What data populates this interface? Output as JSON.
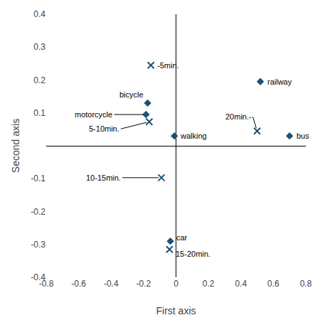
{
  "chart_data": {
    "type": "scatter",
    "xlabel": "First axis",
    "ylabel": "Second axis",
    "xlim": [
      -0.8,
      0.8
    ],
    "ylim": [
      -0.4,
      0.4
    ],
    "xticks": [
      -0.8,
      -0.6,
      -0.4,
      -0.2,
      0,
      0.2,
      0.4,
      0.6,
      0.8
    ],
    "yticks": [
      -0.4,
      -0.3,
      -0.2,
      -0.1,
      0.1,
      0.2,
      0.3,
      0.4
    ],
    "grid": false,
    "series": [
      {
        "marker": "diamond",
        "color": "#1a5276",
        "x": [
          0.52,
          0.7,
          -0.175,
          -0.185,
          -0.01,
          -0.035
        ],
        "values": [
          0.195,
          0.03,
          0.13,
          0.095,
          0.03,
          -0.29
        ],
        "labels": [
          "railway",
          "bus",
          "bicycle",
          "motorcycle",
          "walking",
          "car"
        ]
      },
      {
        "marker": "x",
        "color": "#1a5276",
        "x": [
          -0.155,
          -0.165,
          -0.09,
          -0.04,
          0.5
        ],
        "values": [
          0.245,
          0.073,
          -0.097,
          -0.315,
          0.045
        ],
        "labels": [
          "-5min.",
          "5-10min.",
          "10-15min.",
          "15-20min.",
          "20min.-"
        ]
      }
    ]
  }
}
